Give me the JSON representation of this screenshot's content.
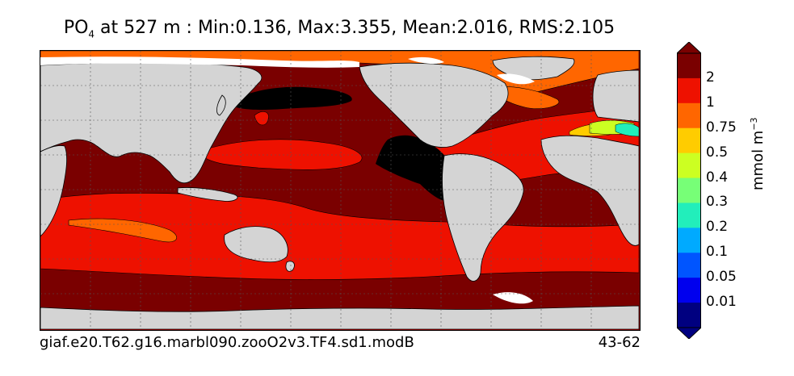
{
  "title": {
    "variable": "PO",
    "subscript": "4",
    "rest": "  at 527 m : Min:0.136, Max:3.355, Mean:2.016, RMS:2.105"
  },
  "footer": {
    "case_name": "giaf.e20.T62.g16.marbl090.zooO2v3.TF4.sd1.modB",
    "years": "43-62"
  },
  "colorbar": {
    "units": "mmol m",
    "units_exp": "−3",
    "levels": [
      {
        "label": "0.01",
        "color": "#000080"
      },
      {
        "label": "0.05",
        "color": "#0000ee"
      },
      {
        "label": "0.1",
        "color": "#0055ff"
      },
      {
        "label": "0.2",
        "color": "#00aaff"
      },
      {
        "label": "0.3",
        "color": "#22eebb"
      },
      {
        "label": "0.4",
        "color": "#77ff77"
      },
      {
        "label": "0.5",
        "color": "#ccff22"
      },
      {
        "label": "0.75",
        "color": "#ffcc00"
      },
      {
        "label": "1",
        "color": "#ff6600"
      },
      {
        "label": "2",
        "color": "#ee1100"
      }
    ],
    "under_color": "#000080",
    "over_color": "#7a0000"
  },
  "map": {
    "land_color": "#d4d4d4",
    "nodata_color": "#ffffff",
    "low_color": "#000000"
  }
}
